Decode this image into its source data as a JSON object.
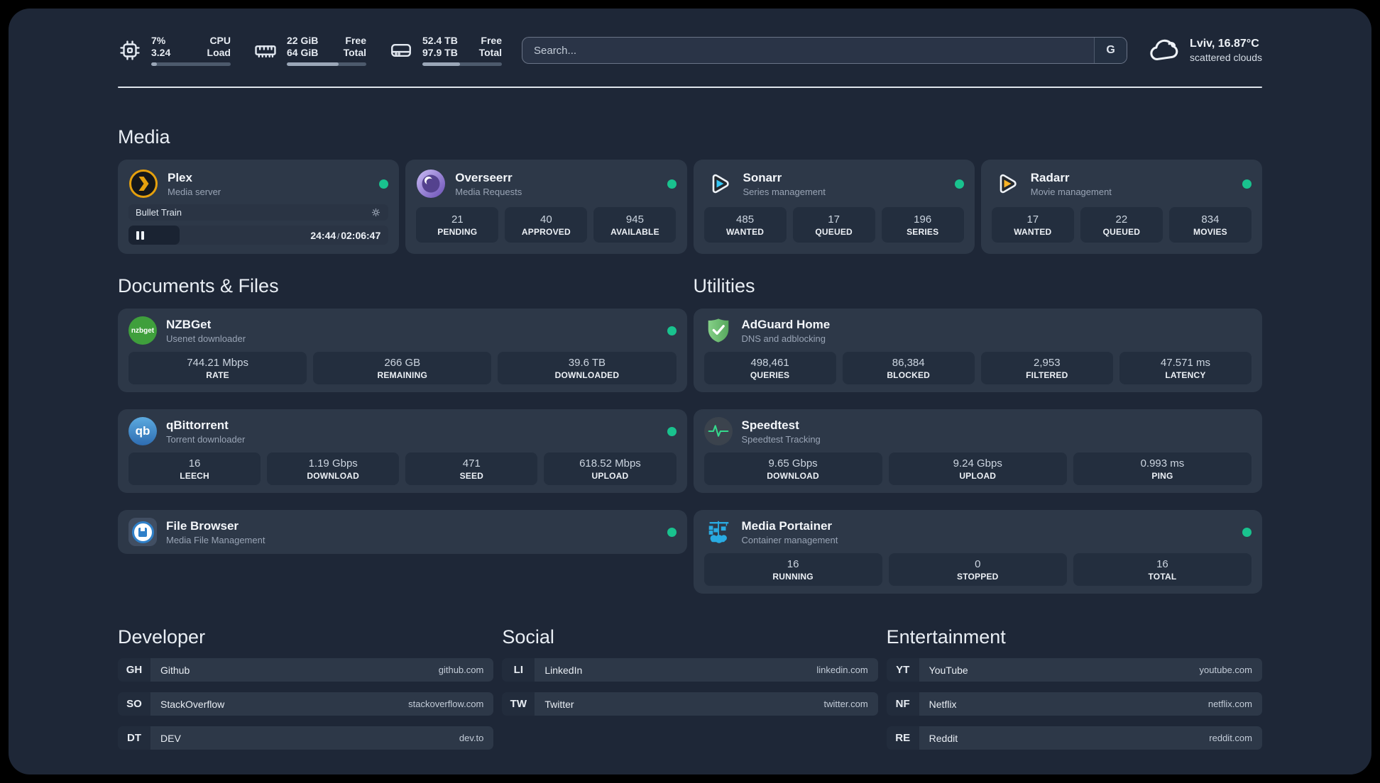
{
  "header": {
    "resources": {
      "cpu": {
        "line1_value": "7%",
        "line2_value": "3.24",
        "line1_label": "CPU",
        "line2_label": "Load",
        "usage_percent": 7
      },
      "memory": {
        "line1_value": "22 GiB",
        "line2_value": "64 GiB",
        "line1_label": "Free",
        "line2_label": "Total",
        "usage_percent": 65
      },
      "disk": {
        "line1_value": "52.4 TB",
        "line2_value": "97.9 TB",
        "line1_label": "Free",
        "line2_label": "Total",
        "usage_percent": 47
      }
    },
    "search": {
      "placeholder": "Search...",
      "provider_button": "G"
    },
    "weather": {
      "location_temperature": "Lviv, 16.87°C",
      "condition": "scattered clouds"
    }
  },
  "sections": {
    "media": {
      "title": "Media",
      "apps": [
        {
          "name": "Plex",
          "description": "Media server",
          "online": true,
          "player": {
            "title": "Bullet Train",
            "elapsed": "24:44",
            "separator": "/",
            "total": "02:06:47",
            "progress_percent": 19.6
          }
        },
        {
          "name": "Overseerr",
          "description": "Media Requests",
          "online": true,
          "stats": [
            {
              "value": "21",
              "label": "PENDING"
            },
            {
              "value": "40",
              "label": "APPROVED"
            },
            {
              "value": "945",
              "label": "AVAILABLE"
            }
          ]
        },
        {
          "name": "Sonarr",
          "description": "Series management",
          "online": true,
          "stats": [
            {
              "value": "485",
              "label": "WANTED"
            },
            {
              "value": "17",
              "label": "QUEUED"
            },
            {
              "value": "196",
              "label": "SERIES"
            }
          ]
        },
        {
          "name": "Radarr",
          "description": "Movie management",
          "online": true,
          "stats": [
            {
              "value": "17",
              "label": "WANTED"
            },
            {
              "value": "22",
              "label": "QUEUED"
            },
            {
              "value": "834",
              "label": "MOVIES"
            }
          ]
        }
      ]
    },
    "documents": {
      "title": "Documents & Files",
      "apps": [
        {
          "name": "NZBGet",
          "description": "Usenet downloader",
          "icon_text": "nzbget",
          "online": true,
          "stats": [
            {
              "value": "744.21 Mbps",
              "label": "RATE"
            },
            {
              "value": "266 GB",
              "label": "REMAINING"
            },
            {
              "value": "39.6 TB",
              "label": "DOWNLOADED"
            }
          ]
        },
        {
          "name": "qBittorrent",
          "description": "Torrent downloader",
          "icon_text": "qb",
          "online": true,
          "stats": [
            {
              "value": "16",
              "label": "LEECH"
            },
            {
              "value": "1.19 Gbps",
              "label": "DOWNLOAD"
            },
            {
              "value": "471",
              "label": "SEED"
            },
            {
              "value": "618.52 Mbps",
              "label": "UPLOAD"
            }
          ]
        },
        {
          "name": "File Browser",
          "description": "Media File Management",
          "online": true,
          "stats": []
        }
      ]
    },
    "utilities": {
      "title": "Utilities",
      "apps": [
        {
          "name": "AdGuard Home",
          "description": "DNS and adblocking",
          "online": false,
          "stats": [
            {
              "value": "498,461",
              "label": "QUERIES"
            },
            {
              "value": "86,384",
              "label": "BLOCKED"
            },
            {
              "value": "2,953",
              "label": "FILTERED"
            },
            {
              "value": "47.571 ms",
              "label": "LATENCY"
            }
          ]
        },
        {
          "name": "Speedtest",
          "description": "Speedtest Tracking",
          "online": false,
          "stats": [
            {
              "value": "9.65 Gbps",
              "label": "DOWNLOAD"
            },
            {
              "value": "9.24 Gbps",
              "label": "UPLOAD"
            },
            {
              "value": "0.993 ms",
              "label": "PING"
            }
          ]
        },
        {
          "name": "Media Portainer",
          "description": "Container management",
          "online": true,
          "stats": [
            {
              "value": "16",
              "label": "RUNNING"
            },
            {
              "value": "0",
              "label": "STOPPED"
            },
            {
              "value": "16",
              "label": "TOTAL"
            }
          ]
        }
      ]
    }
  },
  "bookmarks": {
    "developer": {
      "title": "Developer",
      "items": [
        {
          "abbr": "GH",
          "name": "Github",
          "url": "github.com"
        },
        {
          "abbr": "SO",
          "name": "StackOverflow",
          "url": "stackoverflow.com"
        },
        {
          "abbr": "DT",
          "name": "DEV",
          "url": "dev.to"
        }
      ]
    },
    "social": {
      "title": "Social",
      "items": [
        {
          "abbr": "LI",
          "name": "LinkedIn",
          "url": "linkedin.com"
        },
        {
          "abbr": "TW",
          "name": "Twitter",
          "url": "twitter.com"
        }
      ]
    },
    "entertainment": {
      "title": "Entertainment",
      "items": [
        {
          "abbr": "YT",
          "name": "YouTube",
          "url": "youtube.com"
        },
        {
          "abbr": "NF",
          "name": "Netflix",
          "url": "netflix.com"
        },
        {
          "abbr": "RE",
          "name": "Reddit",
          "url": "reddit.com"
        }
      ]
    }
  },
  "colors": {
    "status_online": "#19c28e",
    "plex_gold": "#e5a00d",
    "overseerr_purple": "#54428e",
    "sonarr_blue": "#35c5f4",
    "radarr_amber": "#fcb426",
    "nzbget_green": "#3f9f3c",
    "qbittorrent_blue": "#2e6db2",
    "filebrowser_blue": "#2f80c9",
    "adguard_green": "#57a85e",
    "speedtest_pulse": "#35d98c",
    "portainer_blue": "#29abe2"
  }
}
